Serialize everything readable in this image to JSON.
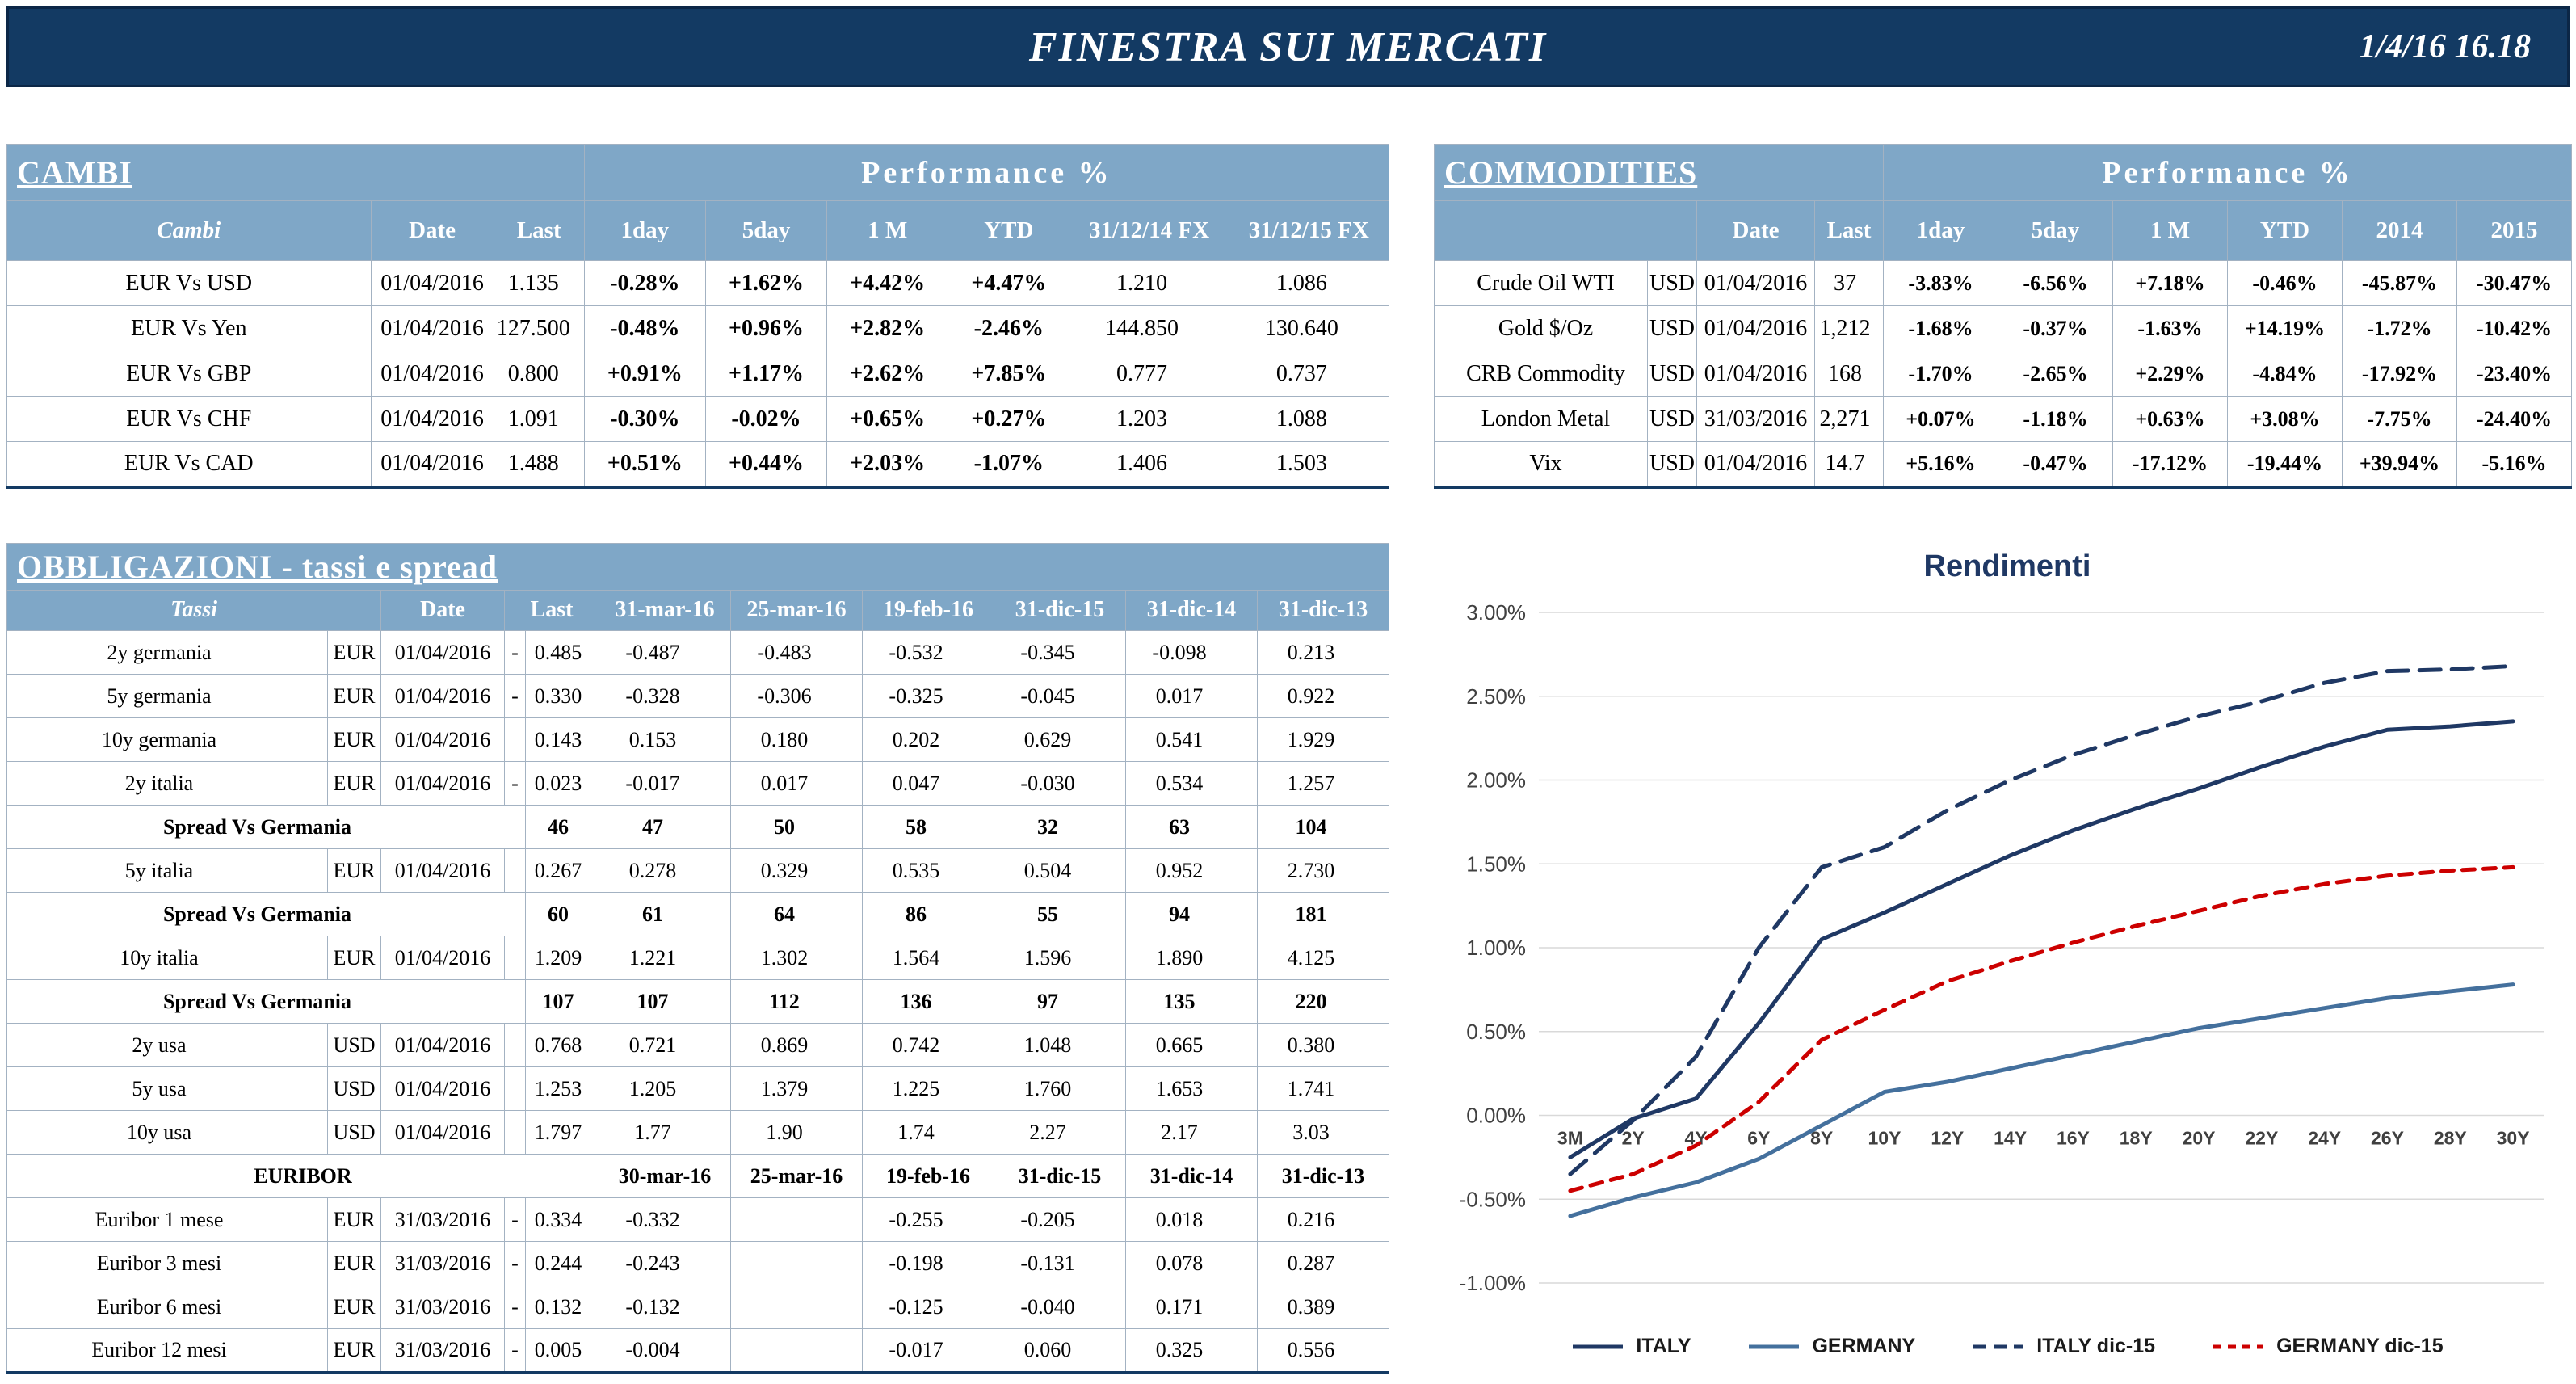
{
  "colors": {
    "navy": "#133a63",
    "header": "#7fa7c7",
    "positive": "#008000",
    "negative": "#cc0000"
  },
  "header": {
    "title": "FINESTRA SUI MERCATI",
    "datetime": "1/4/16 16.18"
  },
  "cambi": {
    "title": "CAMBI",
    "performance_label": "Performance %",
    "columns": {
      "name": "Cambi",
      "date": "Date",
      "last": "Last",
      "d1": "1day",
      "d5": "5day",
      "m1": "1 M",
      "ytd": "YTD",
      "fx14": "31/12/14 FX",
      "fx15": "31/12/15 FX"
    },
    "rows": [
      {
        "name": "EUR Vs USD",
        "date": "01/04/2016",
        "last": "1.135",
        "d1": "-0.28%",
        "d5": "+1.62%",
        "m1": "+4.42%",
        "ytd": "+4.47%",
        "fx14": "1.210",
        "fx15": "1.086"
      },
      {
        "name": "EUR Vs Yen",
        "date": "01/04/2016",
        "last": "127.500",
        "d1": "-0.48%",
        "d5": "+0.96%",
        "m1": "+2.82%",
        "ytd": "-2.46%",
        "fx14": "144.850",
        "fx15": "130.640"
      },
      {
        "name": "EUR Vs GBP",
        "date": "01/04/2016",
        "last": "0.800",
        "d1": "+0.91%",
        "d5": "+1.17%",
        "m1": "+2.62%",
        "ytd": "+7.85%",
        "fx14": "0.777",
        "fx15": "0.737"
      },
      {
        "name": "EUR Vs CHF",
        "date": "01/04/2016",
        "last": "1.091",
        "d1": "-0.30%",
        "d5": "-0.02%",
        "m1": "+0.65%",
        "ytd": "+0.27%",
        "fx14": "1.203",
        "fx15": "1.088"
      },
      {
        "name": "EUR Vs CAD",
        "date": "01/04/2016",
        "last": "1.488",
        "d1": "+0.51%",
        "d5": "+0.44%",
        "m1": "+2.03%",
        "ytd": "-1.07%",
        "fx14": "1.406",
        "fx15": "1.503"
      }
    ]
  },
  "commodities": {
    "title": "COMMODITIES",
    "performance_label": "Performance %",
    "columns": {
      "date": "Date",
      "last": "Last",
      "d1": "1day",
      "d5": "5day",
      "m1": "1 M",
      "ytd": "YTD",
      "y2014": "2014",
      "y2015": "2015"
    },
    "rows": [
      {
        "name": "Crude Oil WTI",
        "cur": "USD",
        "date": "01/04/2016",
        "last": "37",
        "d1": "-3.83%",
        "d5": "-6.56%",
        "m1": "+7.18%",
        "ytd": "-0.46%",
        "y2014": "-45.87%",
        "y2015": "-30.47%"
      },
      {
        "name": "Gold $/Oz",
        "cur": "USD",
        "date": "01/04/2016",
        "last": "1,212",
        "d1": "-1.68%",
        "d5": "-0.37%",
        "m1": "-1.63%",
        "ytd": "+14.19%",
        "y2014": "-1.72%",
        "y2015": "-10.42%"
      },
      {
        "name": "CRB Commodity",
        "cur": "USD",
        "date": "01/04/2016",
        "last": "168",
        "d1": "-1.70%",
        "d5": "-2.65%",
        "m1": "+2.29%",
        "ytd": "-4.84%",
        "y2014": "-17.92%",
        "y2015": "-23.40%"
      },
      {
        "name": "London Metal",
        "cur": "USD",
        "date": "31/03/2016",
        "last": "2,271",
        "d1": "+0.07%",
        "d5": "-1.18%",
        "m1": "+0.63%",
        "ytd": "+3.08%",
        "y2014": "-7.75%",
        "y2015": "-24.40%"
      },
      {
        "name": "Vix",
        "cur": "USD",
        "date": "01/04/2016",
        "last": "14.7",
        "d1": "+5.16%",
        "d5": "-0.47%",
        "m1": "-17.12%",
        "ytd": "-19.44%",
        "y2014": "+39.94%",
        "y2015": "-5.16%"
      }
    ]
  },
  "obbligazioni": {
    "title": "OBBLIGAZIONI - tassi e spread",
    "columns": {
      "name": "Tassi",
      "date": "Date",
      "last": "Last",
      "dates": [
        "31-mar-16",
        "25-mar-16",
        "19-feb-16",
        "31-dic-15",
        "31-dic-14",
        "31-dic-13"
      ]
    },
    "rows": [
      {
        "type": "rate",
        "name": "2y germania",
        "cur": "EUR",
        "date": "01/04/2016",
        "sign": "-",
        "last": "0.485",
        "values": [
          "-0.487",
          "-0.483",
          "-0.532",
          "-0.345",
          "-0.098",
          "0.213"
        ]
      },
      {
        "type": "rate",
        "name": "5y germania",
        "cur": "EUR",
        "date": "01/04/2016",
        "sign": "-",
        "last": "0.330",
        "values": [
          "-0.328",
          "-0.306",
          "-0.325",
          "-0.045",
          "0.017",
          "0.922"
        ]
      },
      {
        "type": "rate",
        "name": "10y germania",
        "cur": "EUR",
        "date": "01/04/2016",
        "sign": "",
        "last": "0.143",
        "values": [
          "0.153",
          "0.180",
          "0.202",
          "0.629",
          "0.541",
          "1.929"
        ]
      },
      {
        "type": "rate",
        "name": "2y italia",
        "cur": "EUR",
        "date": "01/04/2016",
        "sign": "-",
        "last": "0.023",
        "values": [
          "-0.017",
          "0.017",
          "0.047",
          "-0.030",
          "0.534",
          "1.257"
        ]
      },
      {
        "type": "spread",
        "name": "Spread Vs Germania",
        "last": "46",
        "values": [
          "47",
          "50",
          "58",
          "32",
          "63",
          "104"
        ]
      },
      {
        "type": "rate",
        "name": "5y italia",
        "cur": "EUR",
        "date": "01/04/2016",
        "sign": "",
        "last": "0.267",
        "values": [
          "0.278",
          "0.329",
          "0.535",
          "0.504",
          "0.952",
          "2.730"
        ]
      },
      {
        "type": "spread",
        "name": "Spread Vs Germania",
        "last": "60",
        "values": [
          "61",
          "64",
          "86",
          "55",
          "94",
          "181"
        ]
      },
      {
        "type": "rate",
        "name": "10y italia",
        "cur": "EUR",
        "date": "01/04/2016",
        "sign": "",
        "last": "1.209",
        "values": [
          "1.221",
          "1.302",
          "1.564",
          "1.596",
          "1.890",
          "4.125"
        ]
      },
      {
        "type": "spread",
        "name": "Spread Vs Germania",
        "last": "107",
        "values": [
          "107",
          "112",
          "136",
          "97",
          "135",
          "220"
        ]
      },
      {
        "type": "rate",
        "name": "2y usa",
        "cur": "USD",
        "date": "01/04/2016",
        "sign": "",
        "last": "0.768",
        "values": [
          "0.721",
          "0.869",
          "0.742",
          "1.048",
          "0.665",
          "0.380"
        ]
      },
      {
        "type": "rate",
        "name": "5y usa",
        "cur": "USD",
        "date": "01/04/2016",
        "sign": "",
        "last": "1.253",
        "values": [
          "1.205",
          "1.379",
          "1.225",
          "1.760",
          "1.653",
          "1.741"
        ]
      },
      {
        "type": "rate",
        "name": "10y usa",
        "cur": "USD",
        "date": "01/04/2016",
        "sign": "",
        "last": "1.797",
        "values": [
          "1.77",
          "1.90",
          "1.74",
          "2.27",
          "2.17",
          "3.03"
        ]
      },
      {
        "type": "subheader",
        "name": "EURIBOR",
        "dates": [
          "30-mar-16",
          "25-mar-16",
          "19-feb-16",
          "31-dic-15",
          "31-dic-14",
          "31-dic-13"
        ]
      },
      {
        "type": "rate",
        "name": "Euribor 1 mese",
        "cur": "EUR",
        "date": "31/03/2016",
        "sign": "-",
        "last": "0.334",
        "values": [
          "-0.332",
          "",
          "-0.255",
          "-0.205",
          "0.018",
          "0.216"
        ]
      },
      {
        "type": "rate",
        "name": "Euribor 3 mesi",
        "cur": "EUR",
        "date": "31/03/2016",
        "sign": "-",
        "last": "0.244",
        "values": [
          "-0.243",
          "",
          "-0.198",
          "-0.131",
          "0.078",
          "0.287"
        ]
      },
      {
        "type": "rate",
        "name": "Euribor 6 mesi",
        "cur": "EUR",
        "date": "31/03/2016",
        "sign": "-",
        "last": "0.132",
        "values": [
          "-0.132",
          "",
          "-0.125",
          "-0.040",
          "0.171",
          "0.389"
        ]
      },
      {
        "type": "rate",
        "name": "Euribor 12 mesi",
        "cur": "EUR",
        "date": "31/03/2016",
        "sign": "-",
        "last": "0.005",
        "values": [
          "-0.004",
          "",
          "-0.017",
          "0.060",
          "0.325",
          "0.556"
        ]
      }
    ]
  },
  "chart_data": {
    "type": "line",
    "title": "Rendimenti",
    "x": [
      "3M",
      "2Y",
      "4Y",
      "6Y",
      "8Y",
      "10Y",
      "12Y",
      "14Y",
      "16Y",
      "18Y",
      "20Y",
      "22Y",
      "24Y",
      "26Y",
      "28Y",
      "30Y"
    ],
    "ylim": [
      -1.0,
      3.0
    ],
    "ytick_step": 0.5,
    "grid": true,
    "legend_position": "bottom",
    "series": [
      {
        "name": "ITALY",
        "line_style": "solid",
        "color": "#1f3864",
        "values": [
          -0.25,
          -0.02,
          0.1,
          0.55,
          1.05,
          1.21,
          1.38,
          1.55,
          1.7,
          1.83,
          1.95,
          2.08,
          2.2,
          2.3,
          2.32,
          2.35
        ]
      },
      {
        "name": "GERMANY",
        "line_style": "solid",
        "color": "#44709d",
        "values": [
          -0.6,
          -0.49,
          -0.4,
          -0.26,
          -0.06,
          0.14,
          0.2,
          0.28,
          0.36,
          0.44,
          0.52,
          0.58,
          0.64,
          0.7,
          0.74,
          0.78
        ]
      },
      {
        "name": "ITALY dic-15",
        "line_style": "dashed-long",
        "color": "#1f3864",
        "values": [
          -0.35,
          -0.03,
          0.35,
          1.0,
          1.48,
          1.6,
          1.82,
          2.0,
          2.15,
          2.27,
          2.38,
          2.47,
          2.58,
          2.65,
          2.66,
          2.68
        ]
      },
      {
        "name": "GERMANY dic-15",
        "line_style": "dashed-short",
        "color": "#cc0000",
        "values": [
          -0.45,
          -0.35,
          -0.18,
          0.08,
          0.45,
          0.63,
          0.8,
          0.92,
          1.03,
          1.13,
          1.22,
          1.31,
          1.38,
          1.43,
          1.46,
          1.48
        ]
      }
    ]
  }
}
